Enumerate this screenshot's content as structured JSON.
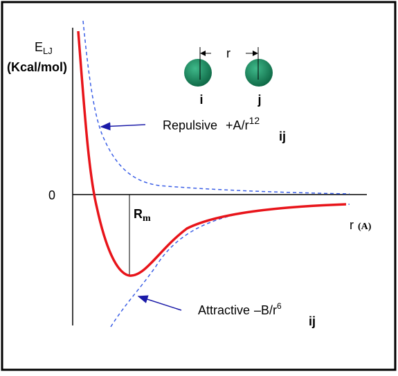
{
  "axes": {
    "y_label": {
      "symbol": "E",
      "subscript": "LJ"
    },
    "y_unit": "(Kcal/mol)",
    "zero_label": "0",
    "x_label": {
      "symbol": "r",
      "unit": "(A)"
    },
    "rm_label": {
      "symbol": "R",
      "subscript": "m"
    }
  },
  "atoms": {
    "distance_label": "r",
    "labels": [
      "i",
      "j"
    ]
  },
  "annotations": [
    {
      "name": "Repulsive",
      "formula": "+A/r",
      "superscript": "12",
      "subscript": "ij"
    },
    {
      "name": "Attractive",
      "formula": "–B/r",
      "superscript": "6",
      "subscript": "ij"
    }
  ]
}
